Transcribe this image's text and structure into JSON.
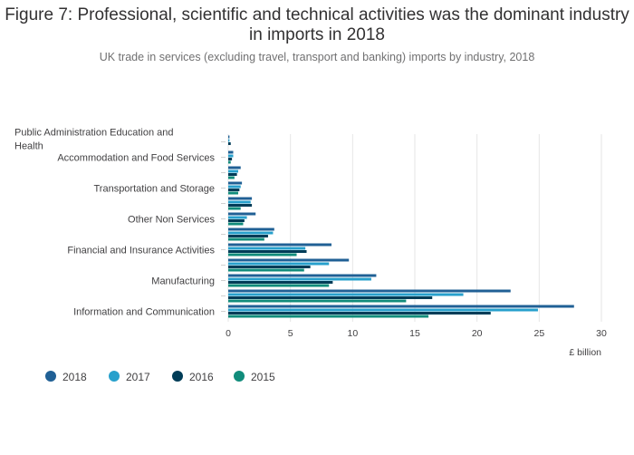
{
  "title": "Figure 7: Professional, scientific and technical activities was the dominant industry in imports in 2018",
  "subtitle": "UK trade in services (excluding travel, transport and banking) imports by industry, 2018",
  "colors": {
    "2018": "#206095",
    "2017": "#27a0cc",
    "2016": "#003c57",
    "2015": "#118c7b"
  },
  "chart_data": {
    "type": "bar",
    "orientation": "horizontal",
    "categories": [
      "Information and Communication",
      "",
      "Manufacturing",
      "",
      "Financial and Insurance Activities",
      "",
      "Other Non Services",
      "",
      "Transportation and Storage",
      "",
      "Accommodation and Food Services",
      "Public Administration Education and Health"
    ],
    "series": [
      {
        "name": "2018",
        "values": [
          27.8,
          22.7,
          11.9,
          9.7,
          8.3,
          3.7,
          2.2,
          1.9,
          1.1,
          1.0,
          0.4,
          0.1
        ]
      },
      {
        "name": "2017",
        "values": [
          24.9,
          18.9,
          11.5,
          8.1,
          6.2,
          3.6,
          1.5,
          1.8,
          1.0,
          0.8,
          0.4,
          0.1
        ]
      },
      {
        "name": "2016",
        "values": [
          21.1,
          16.4,
          8.4,
          6.6,
          6.3,
          3.2,
          1.3,
          1.9,
          0.9,
          0.7,
          0.3,
          0.2
        ]
      },
      {
        "name": "2015",
        "values": [
          16.1,
          14.3,
          8.1,
          6.1,
          5.5,
          2.9,
          1.2,
          1.0,
          0.8,
          0.5,
          0.2,
          0.0
        ]
      }
    ],
    "xticks": [
      0,
      5,
      10,
      15,
      20,
      25,
      30
    ],
    "xlim": [
      0,
      30
    ],
    "xlabel": "£ billion",
    "ylabel": "",
    "grid": true,
    "legend": "bottom-left"
  }
}
